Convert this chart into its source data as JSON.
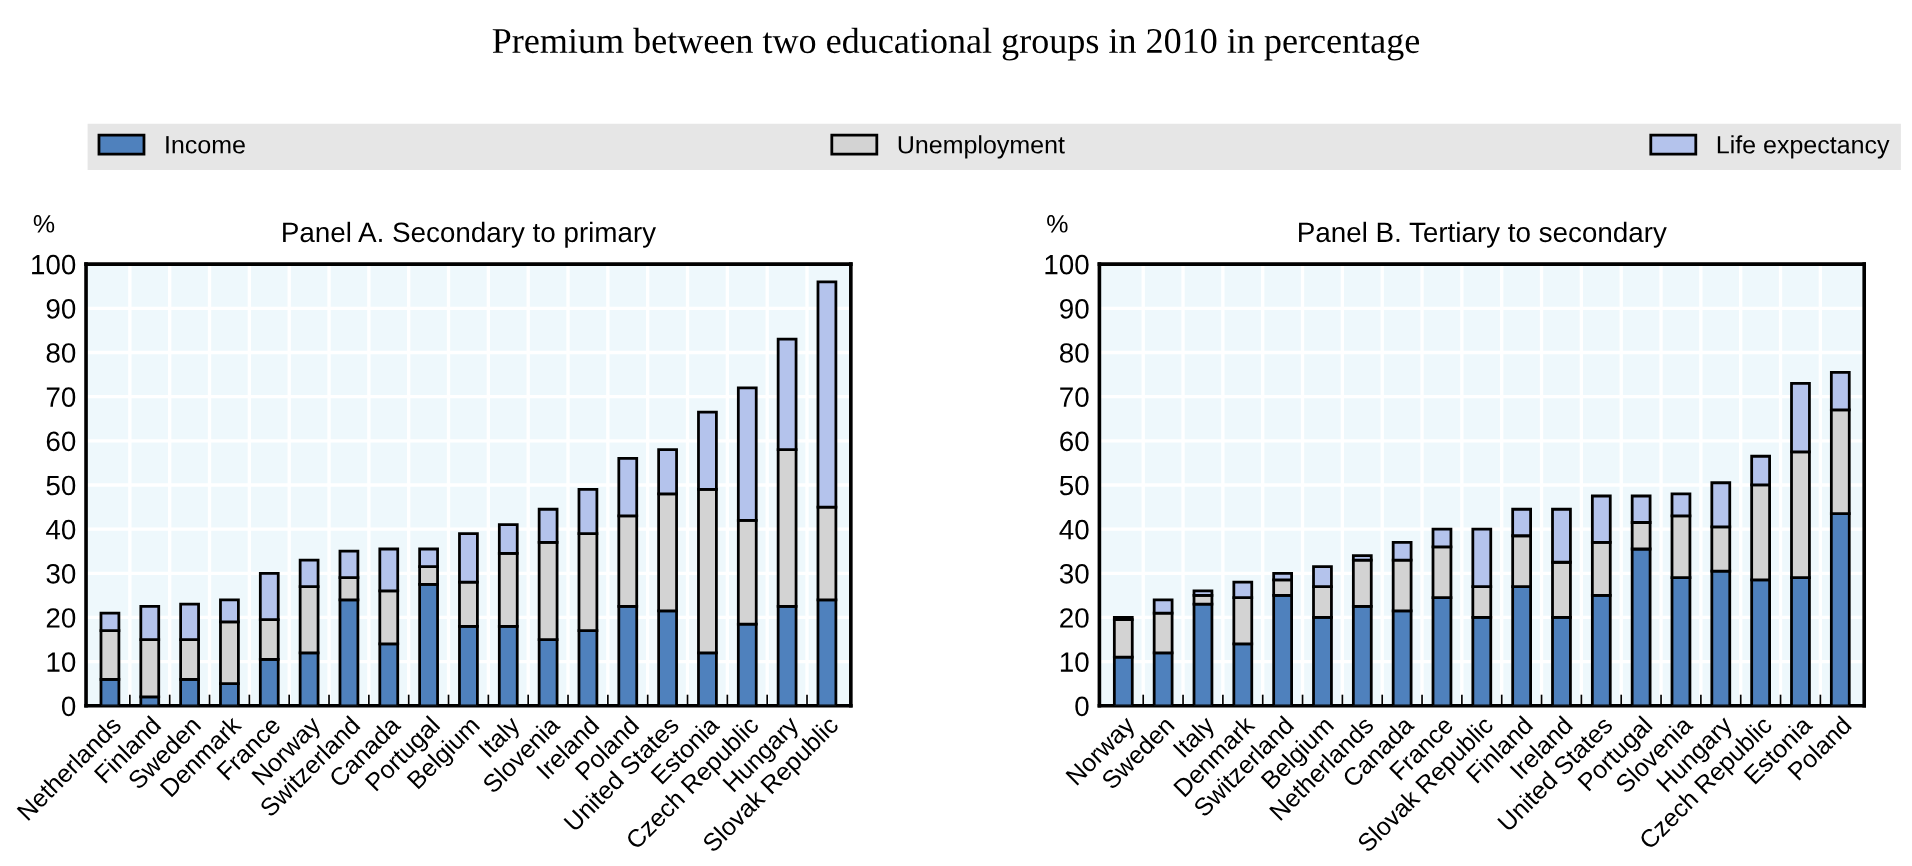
{
  "chart_data": [
    {
      "type": "bar",
      "title": "Panel A. Secondary to primary",
      "ylabel": "%",
      "annotations": [
        "Premium between two educational groups in 2010 in percentage"
      ],
      "stacked": true,
      "grid": true,
      "legend": "top",
      "ylim": [
        0,
        100
      ],
      "yticks": [
        0,
        10,
        20,
        30,
        40,
        50,
        60,
        70,
        80,
        90,
        100
      ],
      "categories": [
        "Netherlands",
        "Finland",
        "Sweden",
        "Denmark",
        "France",
        "Norway",
        "Switzerland",
        "Canada",
        "Portugal",
        "Belgium",
        "Italy",
        "Slovenia",
        "Ireland",
        "Poland",
        "United States",
        "Estonia",
        "Czech Republic",
        "Hungary",
        "Slovak Republic"
      ],
      "series": [
        {
          "name": "Income",
          "color": "#4f81bd",
          "values": [
            6,
            2,
            6,
            5,
            10.5,
            12,
            24,
            14,
            27.5,
            18,
            18,
            15,
            17,
            22.5,
            21.5,
            12,
            18.5,
            22.5,
            24
          ]
        },
        {
          "name": "Unemployment",
          "color": "#d3d3d3",
          "values": [
            11,
            13,
            9,
            14,
            9,
            15,
            5,
            12,
            4,
            10,
            16.5,
            22,
            22,
            20.5,
            26.5,
            37,
            23.5,
            35.5,
            21
          ]
        },
        {
          "name": "Life expectancy",
          "color": "#b4c3ec",
          "values": [
            4,
            7.5,
            8,
            5,
            10.5,
            6,
            6,
            9.5,
            4,
            11,
            6.5,
            7.5,
            10,
            13,
            10,
            17.5,
            30,
            25,
            51
          ]
        }
      ]
    },
    {
      "type": "bar",
      "title": "Panel B. Tertiary to secondary",
      "ylabel": "%",
      "stacked": true,
      "grid": true,
      "ylim": [
        0,
        100
      ],
      "yticks": [
        0,
        10,
        20,
        30,
        40,
        50,
        60,
        70,
        80,
        90,
        100
      ],
      "categories": [
        "Norway",
        "Sweden",
        "Italy",
        "Denmark",
        "Switzerland",
        "Belgium",
        "Netherlands",
        "Canada",
        "France",
        "Slovak Republic",
        "Finland",
        "Ireland",
        "United States",
        "Portugal",
        "Slovenia",
        "Hungary",
        "Czech Republic",
        "Estonia",
        "Poland"
      ],
      "series": [
        {
          "color": "#4f81bd",
          "values": [
            11,
            12,
            23,
            14,
            25,
            20,
            22.5,
            21.5,
            24.5,
            20,
            27,
            20,
            25,
            35.5,
            29,
            30.5,
            28.5,
            29,
            43.5
          ]
        },
        {
          "color": "#d3d3d3",
          "values": [
            8.5,
            9,
            2,
            10.5,
            3.5,
            7,
            10.5,
            11.5,
            11.5,
            7,
            11.5,
            12.5,
            12,
            6,
            14,
            10,
            21.5,
            28.5,
            23.5
          ]
        },
        {
          "color": "#b4c3ec",
          "values": [
            0.5,
            3,
            1,
            3.5,
            1.5,
            4.5,
            1,
            4,
            4,
            13,
            6,
            12,
            10.5,
            6,
            5,
            10,
            6.5,
            15.5,
            8.5
          ]
        }
      ]
    }
  ]
}
